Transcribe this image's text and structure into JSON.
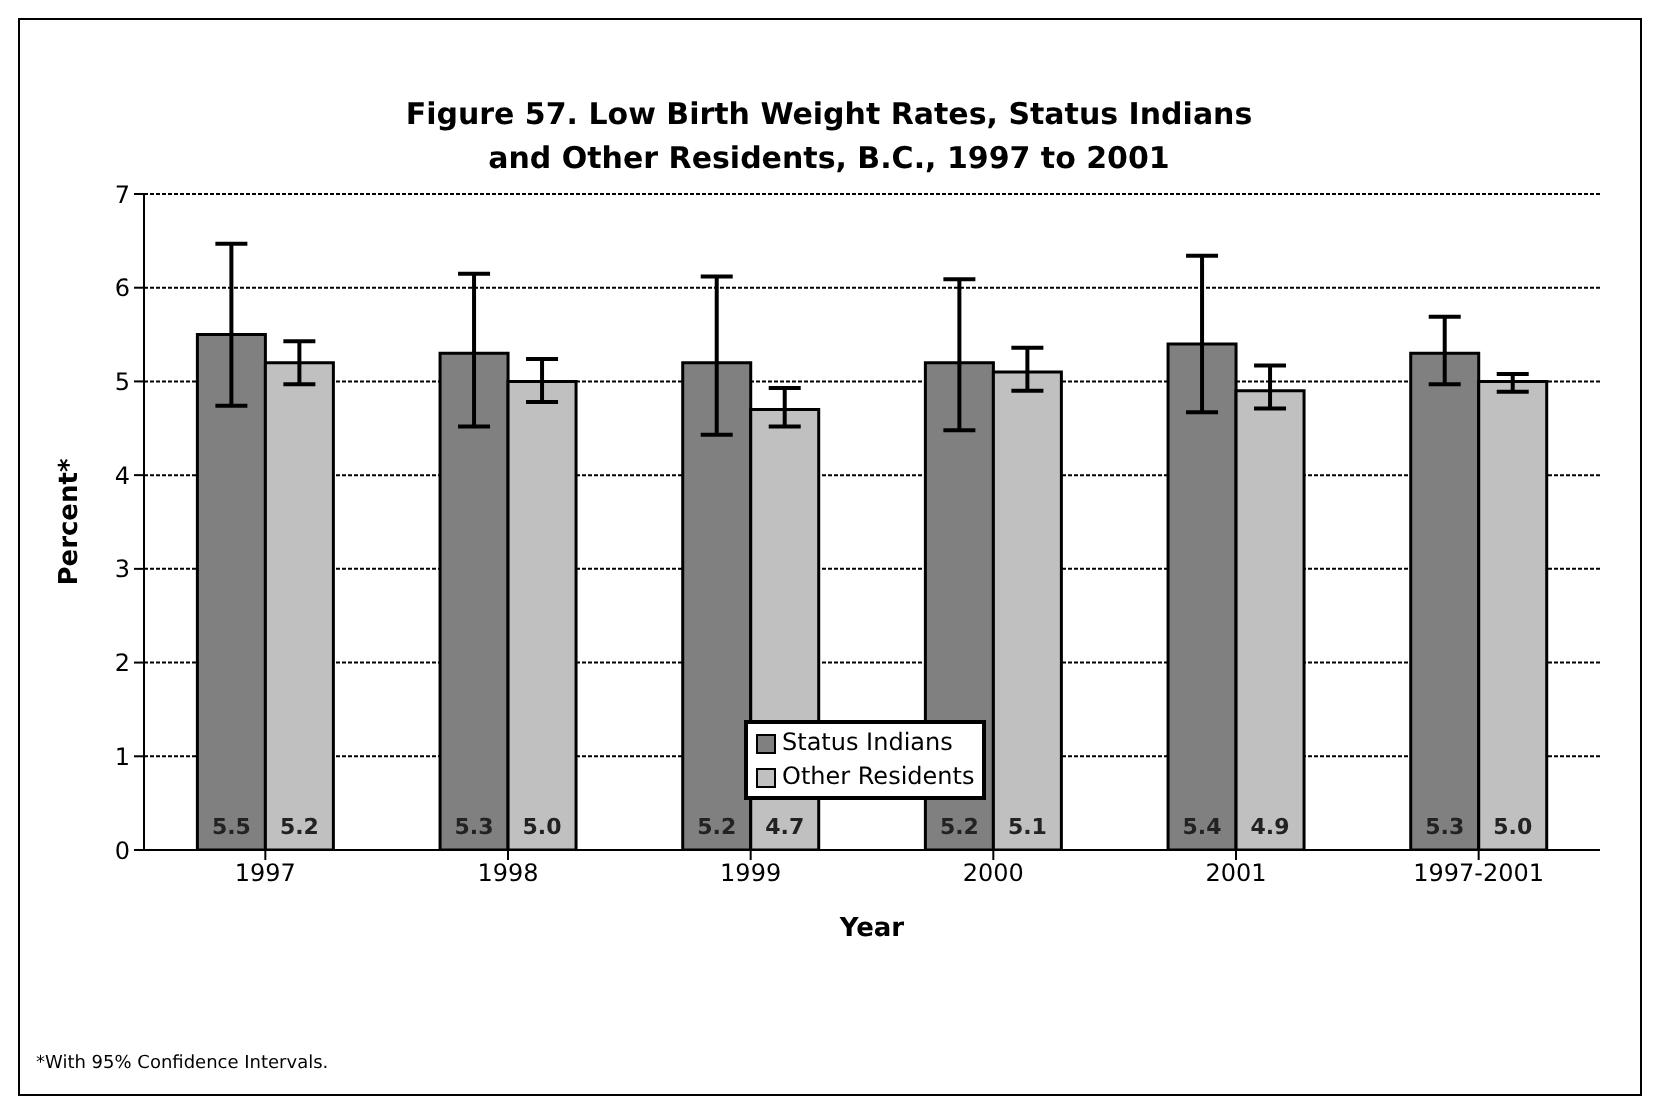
{
  "chart_data": {
    "type": "bar",
    "title": "Figure 57.  Low Birth Weight Rates, Status Indians\nand Other Residents, B.C., 1997 to 2001",
    "xlabel": "Year",
    "ylabel": "Percent*",
    "categories": [
      "1997",
      "1998",
      "1999",
      "2000",
      "2001",
      "1997-2001"
    ],
    "series": [
      {
        "name": "Status Indians",
        "color": "#808080",
        "values": [
          5.5,
          5.3,
          5.2,
          5.2,
          5.4,
          5.3
        ],
        "value_labels": [
          "5.5",
          "5.3",
          "5.2",
          "5.2",
          "5.4",
          "5.3"
        ],
        "errors": [
          [
            4.74,
            6.47
          ],
          [
            4.52,
            6.15
          ],
          [
            4.43,
            6.12
          ],
          [
            4.48,
            6.09
          ],
          [
            4.67,
            6.34
          ],
          [
            4.97,
            5.69
          ]
        ]
      },
      {
        "name": "Other Residents",
        "color": "#c0c0c0",
        "values": [
          5.2,
          5.0,
          4.7,
          5.1,
          4.9,
          5.0
        ],
        "value_labels": [
          "5.2",
          "5.0",
          "4.7",
          "5.1",
          "4.9",
          "5.0"
        ],
        "errors": [
          [
            4.97,
            5.43
          ],
          [
            4.78,
            5.24
          ],
          [
            4.52,
            4.93
          ],
          [
            4.9,
            5.36
          ],
          [
            4.71,
            5.17
          ],
          [
            4.89,
            5.08
          ]
        ]
      }
    ],
    "ylim": [
      0,
      7
    ],
    "yticks": [
      0,
      1,
      2,
      3,
      4,
      5,
      6,
      7
    ],
    "grid": "y",
    "legend": "bottom",
    "annotations": [
      "*With 95% Confidence Intervals."
    ]
  }
}
